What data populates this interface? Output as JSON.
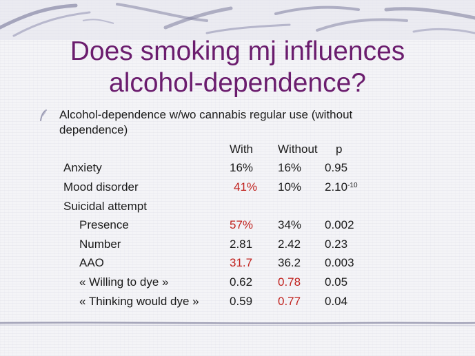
{
  "slide": {
    "title_line1": "Does smoking mj influences",
    "title_line2": "alcohol-dependence?",
    "bullet_text": "Alcohol-dependence w/wo cannabis regular use (without dependence)"
  },
  "table": {
    "headers": {
      "with": "With",
      "without": "Without",
      "p": "p"
    },
    "rows": [
      {
        "label": "Anxiety",
        "with": "16%",
        "without": "16%",
        "p": "0.95",
        "p_exp": ""
      },
      {
        "label": "Mood disorder",
        "with": "41%",
        "without": "10%",
        "p": "2.10",
        "p_exp": "-10"
      },
      {
        "label": "Suicidal attempt",
        "with": "",
        "without": "",
        "p": "",
        "p_exp": ""
      },
      {
        "label": "Presence",
        "with": "57%",
        "without": "34%",
        "p": "0.002",
        "p_exp": ""
      },
      {
        "label": "Number",
        "with": "2.81",
        "without": "2.42",
        "p": "0.23",
        "p_exp": ""
      },
      {
        "label": "AAO",
        "with": "31.7",
        "without": "36.2",
        "p": "0.003",
        "p_exp": ""
      },
      {
        "label": "« Willing to dye »",
        "with": "0.62",
        "without": "0.78",
        "p": "0.05",
        "p_exp": ""
      },
      {
        "label": "« Thinking would dye »",
        "with": "0.59",
        "without": "0.77",
        "p": "0.04",
        "p_exp": ""
      }
    ]
  },
  "colors": {
    "title": "#6b1d6e",
    "highlight": "#c0201c",
    "text": "#1a1a1a",
    "decor": "#8a8aa8"
  },
  "icons": {
    "bullet": "quill-swirl-icon"
  }
}
